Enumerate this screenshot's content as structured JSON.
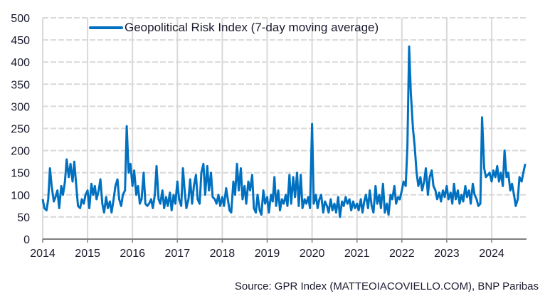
{
  "chart_data": {
    "type": "line",
    "title": "",
    "xlabel": "",
    "ylabel": "",
    "ylim": [
      0,
      500
    ],
    "yticks": [
      "0",
      "50",
      "100",
      "150",
      "200",
      "250",
      "300",
      "350",
      "400",
      "450",
      "500"
    ],
    "xticks": [
      "2014",
      "2015",
      "2016",
      "2017",
      "2018",
      "2019",
      "2020",
      "2021",
      "2022",
      "2023",
      "2024"
    ],
    "grid": true,
    "legend_placement": "top-left",
    "series": [
      {
        "name": "Geopolitical Risk Index (7-day moving average)",
        "color": "#0070c0",
        "dates": [
          "2014-01-01",
          "2014-01-15",
          "2014-02-01",
          "2014-02-15",
          "2014-03-01",
          "2014-03-15",
          "2014-04-01",
          "2014-04-15",
          "2014-05-01",
          "2014-05-15",
          "2014-06-01",
          "2014-06-15",
          "2014-07-01",
          "2014-07-15",
          "2014-08-01",
          "2014-08-15",
          "2014-09-01",
          "2014-09-15",
          "2014-10-01",
          "2014-10-15",
          "2014-11-01",
          "2014-11-15",
          "2014-12-01",
          "2014-12-15",
          "2015-01-01",
          "2015-01-15",
          "2015-02-01",
          "2015-02-15",
          "2015-03-01",
          "2015-03-15",
          "2015-04-01",
          "2015-04-15",
          "2015-05-01",
          "2015-05-15",
          "2015-06-01",
          "2015-06-15",
          "2015-07-01",
          "2015-07-15",
          "2015-08-01",
          "2015-08-15",
          "2015-09-01",
          "2015-09-15",
          "2015-10-01",
          "2015-10-15",
          "2015-11-01",
          "2015-11-15",
          "2015-12-01",
          "2015-12-15",
          "2016-01-01",
          "2016-01-15",
          "2016-02-01",
          "2016-02-15",
          "2016-03-01",
          "2016-03-15",
          "2016-04-01",
          "2016-04-15",
          "2016-05-01",
          "2016-05-15",
          "2016-06-01",
          "2016-06-15",
          "2016-07-01",
          "2016-07-15",
          "2016-08-01",
          "2016-08-15",
          "2016-09-01",
          "2016-09-15",
          "2016-10-01",
          "2016-10-15",
          "2016-11-01",
          "2016-11-15",
          "2016-12-01",
          "2016-12-15",
          "2017-01-01",
          "2017-01-15",
          "2017-02-01",
          "2017-02-15",
          "2017-03-01",
          "2017-03-15",
          "2017-04-01",
          "2017-04-15",
          "2017-05-01",
          "2017-05-15",
          "2017-06-01",
          "2017-06-15",
          "2017-07-01",
          "2017-07-15",
          "2017-08-01",
          "2017-08-15",
          "2017-09-01",
          "2017-09-15",
          "2017-10-01",
          "2017-10-15",
          "2017-11-01",
          "2017-11-15",
          "2017-12-01",
          "2017-12-15",
          "2018-01-01",
          "2018-01-15",
          "2018-02-01",
          "2018-02-15",
          "2018-03-01",
          "2018-03-15",
          "2018-04-01",
          "2018-04-15",
          "2018-05-01",
          "2018-05-15",
          "2018-06-01",
          "2018-06-15",
          "2018-07-01",
          "2018-07-15",
          "2018-08-01",
          "2018-08-15",
          "2018-09-01",
          "2018-09-15",
          "2018-10-01",
          "2018-10-15",
          "2018-11-01",
          "2018-11-15",
          "2018-12-01",
          "2018-12-15",
          "2019-01-01",
          "2019-01-15",
          "2019-02-01",
          "2019-02-15",
          "2019-03-01",
          "2019-03-15",
          "2019-04-01",
          "2019-04-15",
          "2019-05-01",
          "2019-05-15",
          "2019-06-01",
          "2019-06-15",
          "2019-07-01",
          "2019-07-15",
          "2019-08-01",
          "2019-08-15",
          "2019-09-01",
          "2019-09-15",
          "2019-10-01",
          "2019-10-15",
          "2019-11-01",
          "2019-11-15",
          "2019-12-01",
          "2019-12-15",
          "2020-01-01",
          "2020-01-15",
          "2020-02-01",
          "2020-02-15",
          "2020-03-01",
          "2020-03-15",
          "2020-04-01",
          "2020-04-15",
          "2020-05-01",
          "2020-05-15",
          "2020-06-01",
          "2020-06-15",
          "2020-07-01",
          "2020-07-15",
          "2020-08-01",
          "2020-08-15",
          "2020-09-01",
          "2020-09-15",
          "2020-10-01",
          "2020-10-15",
          "2020-11-01",
          "2020-11-15",
          "2020-12-01",
          "2020-12-15",
          "2021-01-01",
          "2021-01-15",
          "2021-02-01",
          "2021-02-15",
          "2021-03-01",
          "2021-03-15",
          "2021-04-01",
          "2021-04-15",
          "2021-05-01",
          "2021-05-15",
          "2021-06-01",
          "2021-06-15",
          "2021-07-01",
          "2021-07-15",
          "2021-08-01",
          "2021-08-15",
          "2021-09-01",
          "2021-09-15",
          "2021-10-01",
          "2021-10-15",
          "2021-11-01",
          "2021-11-15",
          "2021-12-01",
          "2021-12-15",
          "2022-01-01",
          "2022-01-15",
          "2022-02-01",
          "2022-02-15",
          "2022-03-01",
          "2022-03-15",
          "2022-04-01",
          "2022-04-15",
          "2022-05-01",
          "2022-05-15",
          "2022-06-01",
          "2022-06-15",
          "2022-07-01",
          "2022-07-15",
          "2022-08-01",
          "2022-08-15",
          "2022-09-01",
          "2022-09-15",
          "2022-10-01",
          "2022-10-15",
          "2022-11-01",
          "2022-11-15",
          "2022-12-01",
          "2022-12-15",
          "2023-01-01",
          "2023-01-15",
          "2023-02-01",
          "2023-02-15",
          "2023-03-01",
          "2023-03-15",
          "2023-04-01",
          "2023-04-15",
          "2023-05-01",
          "2023-05-15",
          "2023-06-01",
          "2023-06-15",
          "2023-07-01",
          "2023-07-15",
          "2023-08-01",
          "2023-08-15",
          "2023-09-01",
          "2023-09-15",
          "2023-10-01",
          "2023-10-15",
          "2023-11-01",
          "2023-11-15",
          "2023-12-01",
          "2023-12-15",
          "2024-01-01",
          "2024-01-15",
          "2024-02-01",
          "2024-02-15",
          "2024-03-01",
          "2024-03-15",
          "2024-04-01",
          "2024-04-15",
          "2024-05-01",
          "2024-05-15",
          "2024-06-01",
          "2024-06-15",
          "2024-07-01",
          "2024-07-15",
          "2024-08-01",
          "2024-08-15",
          "2024-09-01",
          "2024-09-15",
          "2024-10-01"
        ],
        "values": [
          90,
          70,
          65,
          90,
          160,
          120,
          85,
          95,
          110,
          70,
          120,
          100,
          130,
          180,
          140,
          170,
          130,
          175,
          120,
          75,
          70,
          90,
          80,
          100,
          110,
          70,
          125,
          100,
          120,
          90,
          110,
          135,
          80,
          60,
          95,
          70,
          85,
          60,
          90,
          120,
          135,
          90,
          75,
          100,
          110,
          255,
          150,
          170,
          120,
          155,
          100,
          120,
          80,
          90,
          150,
          80,
          75,
          80,
          90,
          70,
          100,
          165,
          90,
          80,
          110,
          70,
          95,
          75,
          105,
          65,
          100,
          80,
          130,
          90,
          75,
          160,
          110,
          70,
          90,
          135,
          80,
          120,
          145,
          90,
          80,
          150,
          170,
          100,
          165,
          110,
          150,
          95,
          90,
          80,
          100,
          75,
          95,
          75,
          115,
          90,
          65,
          60,
          130,
          100,
          170,
          110,
          160,
          90,
          120,
          80,
          130,
          110,
          145,
          70,
          60,
          100,
          65,
          55,
          110,
          80,
          95,
          60,
          100,
          85,
          140,
          75,
          110,
          65,
          90,
          80,
          100,
          75,
          145,
          80,
          140,
          95,
          150,
          75,
          145,
          70,
          90,
          80,
          95,
          70,
          260,
          80,
          100,
          70,
          90,
          100,
          60,
          85,
          75,
          60,
          90,
          65,
          80,
          60,
          95,
          50,
          85,
          75,
          95,
          80,
          90,
          65,
          85,
          70,
          80,
          65,
          90,
          60,
          85,
          100,
          70,
          110,
          75,
          60,
          120,
          80,
          100,
          70,
          125,
          60,
          80,
          55,
          100,
          90,
          120,
          80,
          95,
          90,
          110,
          130,
          120,
          210,
          435,
          330,
          250,
          210,
          150,
          120,
          140,
          110,
          130,
          160,
          100,
          140,
          155,
          120,
          110,
          90,
          105,
          85,
          110,
          95,
          120,
          90,
          105,
          80,
          125,
          90,
          110,
          80,
          100,
          85,
          120,
          95,
          110,
          80,
          125,
          100,
          90,
          75,
          80,
          275,
          160,
          140,
          145,
          150,
          130,
          155,
          140,
          165,
          130,
          150,
          120,
          200,
          140,
          150,
          110,
          125,
          100,
          75,
          90,
          140,
          130,
          150,
          170
        ]
      }
    ]
  },
  "source": "Source: GPR Index (MATTEOIACOVIELLO.COM), BNP Paribas"
}
